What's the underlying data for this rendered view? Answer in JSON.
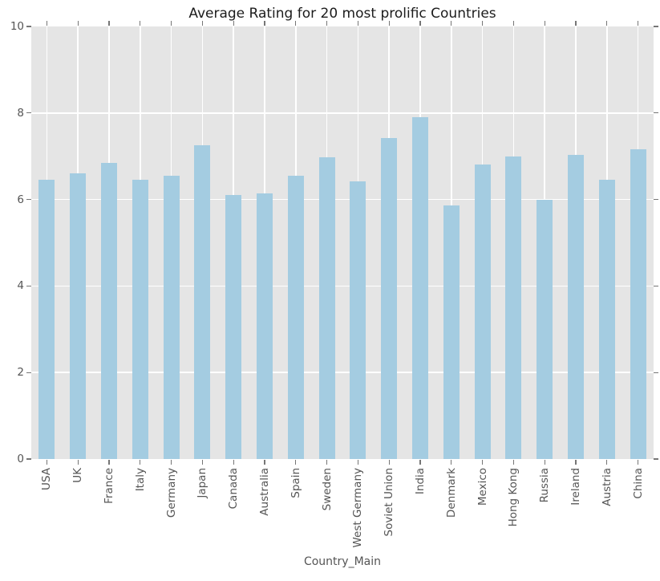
{
  "chart_data": {
    "type": "bar",
    "title": "Average Rating for 20 most prolific Countries",
    "xlabel": "Country_Main",
    "ylabel": "",
    "categories": [
      "USA",
      "UK",
      "France",
      "Italy",
      "Germany",
      "Japan",
      "Canada",
      "Australia",
      "Spain",
      "Sweden",
      "West Germany",
      "Soviet Union",
      "India",
      "Denmark",
      "Mexico",
      "Hong Kong",
      "Russia",
      "Ireland",
      "Austria",
      "China"
    ],
    "values": [
      6.45,
      6.6,
      6.85,
      6.45,
      6.55,
      7.25,
      6.1,
      6.15,
      6.55,
      6.98,
      6.42,
      7.43,
      7.91,
      5.87,
      6.8,
      6.99,
      6.0,
      7.03,
      6.45,
      7.17
    ],
    "ylim": [
      0,
      10
    ],
    "yticks": [
      0,
      2,
      4,
      6,
      8,
      10
    ],
    "grid": true,
    "legend_position": "none",
    "colors": {
      "bar": "#a4cce1",
      "plot_bg": "#e5e5e5",
      "grid": "#ffffff",
      "tick": "#767676",
      "tick_label": "#555555",
      "axis_label": "#555555",
      "title": "#1c1c1c"
    }
  }
}
